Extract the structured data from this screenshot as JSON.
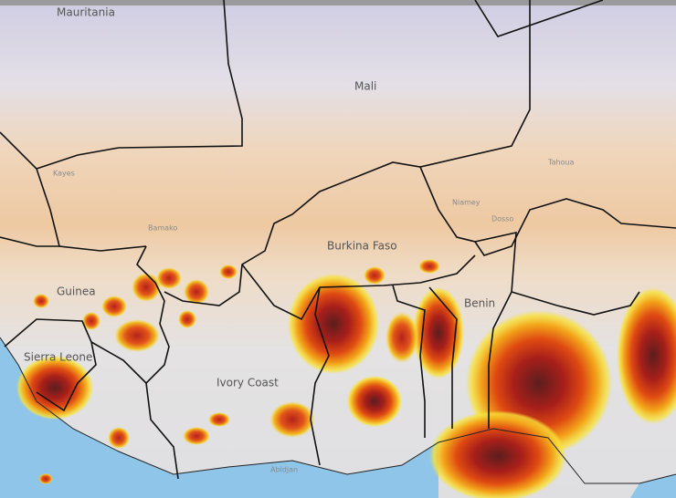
{
  "labels": [
    {
      "text": "Mauritania"
    },
    {
      "text": "Mali"
    },
    {
      "text": "Burkina Faso"
    },
    {
      "text": "Guinea"
    },
    {
      "text": "Sierra Leone"
    },
    {
      "text": "Ivory Coast"
    },
    {
      "text": "Benin"
    },
    {
      "text": "Niamey"
    },
    {
      "text": "Abidjan"
    },
    {
      "text": "Bamako"
    },
    {
      "text": "Dosso"
    },
    {
      "text": "Tahoua"
    },
    {
      "text": "Kayes"
    }
  ]
}
